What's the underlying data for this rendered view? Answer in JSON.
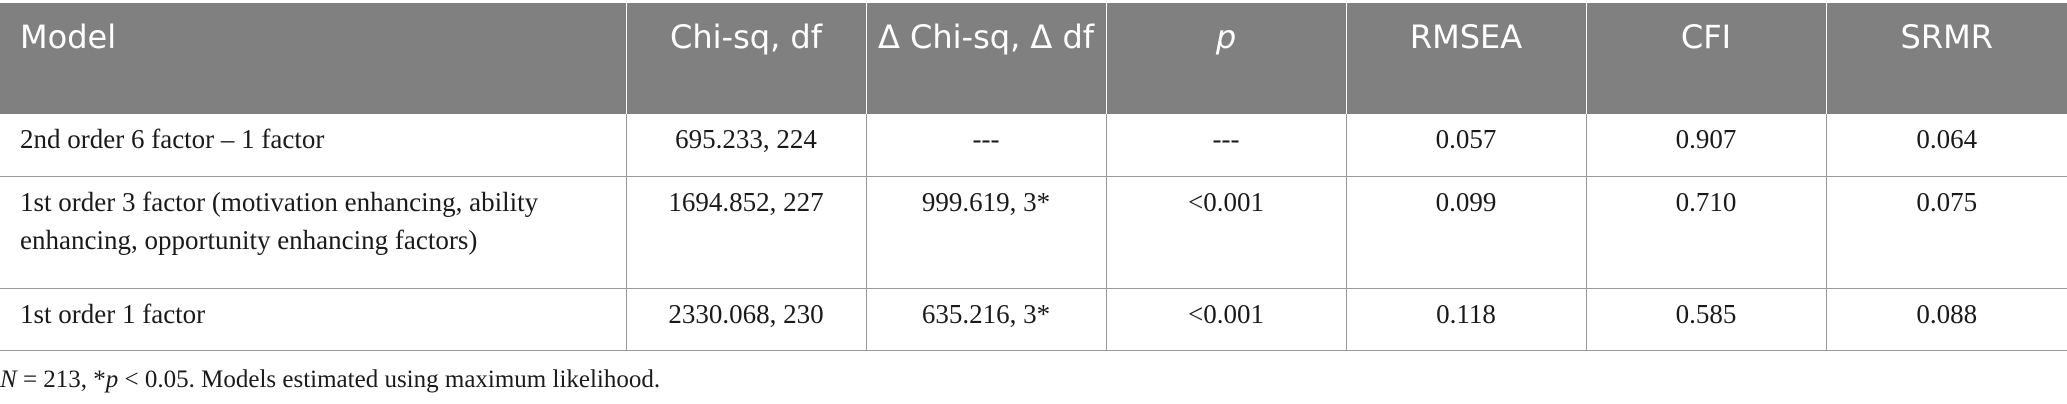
{
  "table": {
    "headers": [
      "Model",
      "Chi-sq, df",
      "Δ Chi-sq, Δ df",
      "p",
      "RMSEA",
      "CFI",
      "SRMR"
    ],
    "rows": [
      [
        "2nd order 6 factor – 1 factor",
        "695.233, 224",
        "---",
        "---",
        "0.057",
        "0.907",
        "0.064"
      ],
      [
        "1st order 3 factor (motivation enhancing, ability enhancing, opportunity enhancing factors)",
        "1694.852, 227",
        "999.619, 3*",
        "<0.001",
        "0.099",
        "0.710",
        "0.075"
      ],
      [
        "1st order 1 factor",
        "2330.068, 230",
        "635.216, 3*",
        "<0.001",
        "0.118",
        "0.585",
        "0.088"
      ]
    ]
  },
  "footnote": {
    "n_italic": "N",
    "n_value": " = 213, *",
    "p_italic": "p",
    "rest": " < 0.05. Models estimated using maximum likelihood."
  }
}
